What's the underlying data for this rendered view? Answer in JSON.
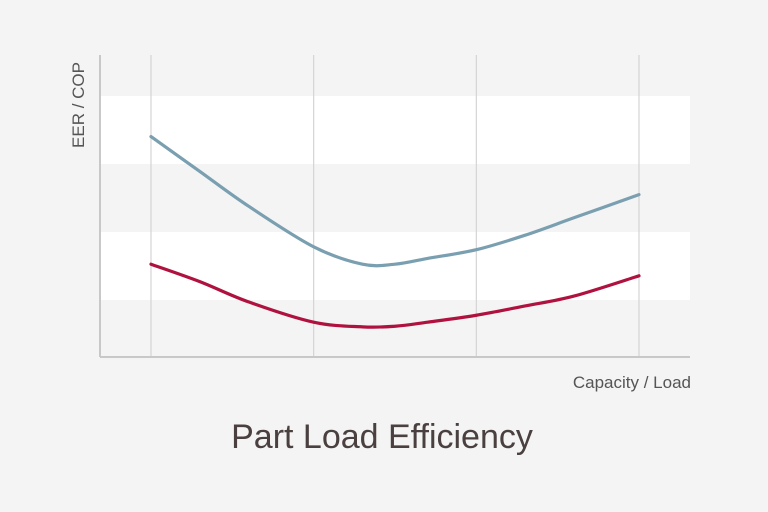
{
  "chart_data": {
    "type": "line",
    "title": "Part Load Efficiency",
    "xlabel": "Capacity / Load",
    "ylabel": "EER / COP",
    "grid": true,
    "legend": "none",
    "xlim": [
      0,
      3
    ],
    "ylim": [
      0,
      4.5
    ],
    "series": [
      {
        "color": "#7a9fb0",
        "x": [
          0,
          0.3,
          0.6,
          1.0,
          1.3,
          1.5,
          1.7,
          2.0,
          2.3,
          2.6,
          3.0
        ],
        "y": [
          3.8,
          3.2,
          2.6,
          1.9,
          1.6,
          1.6,
          1.7,
          1.85,
          2.1,
          2.4,
          2.8
        ]
      },
      {
        "color": "#b0123f",
        "x": [
          0,
          0.3,
          0.6,
          1.0,
          1.3,
          1.5,
          1.7,
          2.0,
          2.3,
          2.6,
          3.0
        ],
        "y": [
          1.6,
          1.3,
          0.95,
          0.6,
          0.52,
          0.53,
          0.6,
          0.72,
          0.88,
          1.05,
          1.4
        ]
      }
    ]
  },
  "colors": {
    "background": "#f4f4f4",
    "band": "#ffffff",
    "gridline": "#d4d4d4",
    "axis": "#c8c8c8",
    "label": "#555555",
    "title": "#4a4040"
  }
}
